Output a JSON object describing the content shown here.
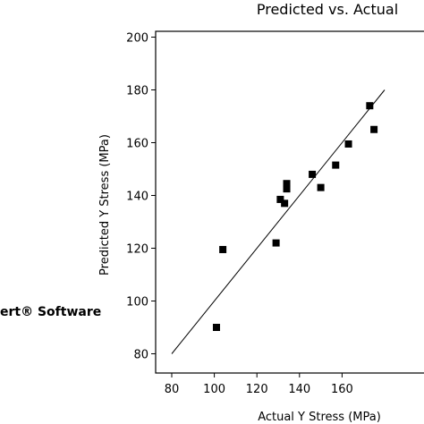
{
  "brand_text": "ert® Software",
  "chart_data": {
    "type": "scatter",
    "title": "Predicted vs. Actual",
    "xlabel": "Actual Y Stress (MPa)",
    "ylabel": "Predicted Y Stress (MPa)",
    "xlim": [
      80,
      180
    ],
    "ylim": [
      80,
      200
    ],
    "x_ticks": [
      80,
      100,
      120,
      140,
      160
    ],
    "y_ticks": [
      80,
      100,
      120,
      140,
      160,
      180,
      200
    ],
    "x_tick_labels": [
      "80",
      "100",
      "120",
      "140",
      "160"
    ],
    "y_tick_labels": [
      "80",
      "100",
      "120",
      "140",
      "160",
      "180",
      "200"
    ],
    "grid": false,
    "reference_line": {
      "from": [
        80,
        80
      ],
      "to": [
        180,
        180
      ]
    },
    "points": [
      {
        "x": 101,
        "y": 90
      },
      {
        "x": 104,
        "y": 119.5
      },
      {
        "x": 129,
        "y": 122
      },
      {
        "x": 131,
        "y": 138.5
      },
      {
        "x": 133,
        "y": 137
      },
      {
        "x": 134,
        "y": 142.5
      },
      {
        "x": 134,
        "y": 144.5
      },
      {
        "x": 146,
        "y": 148
      },
      {
        "x": 150,
        "y": 143
      },
      {
        "x": 157,
        "y": 151.5
      },
      {
        "x": 163,
        "y": 159.5
      },
      {
        "x": 173,
        "y": 174
      },
      {
        "x": 175,
        "y": 165
      }
    ],
    "colors": {
      "marker": "#000000",
      "line": "#000000",
      "axis": "#000000"
    }
  }
}
